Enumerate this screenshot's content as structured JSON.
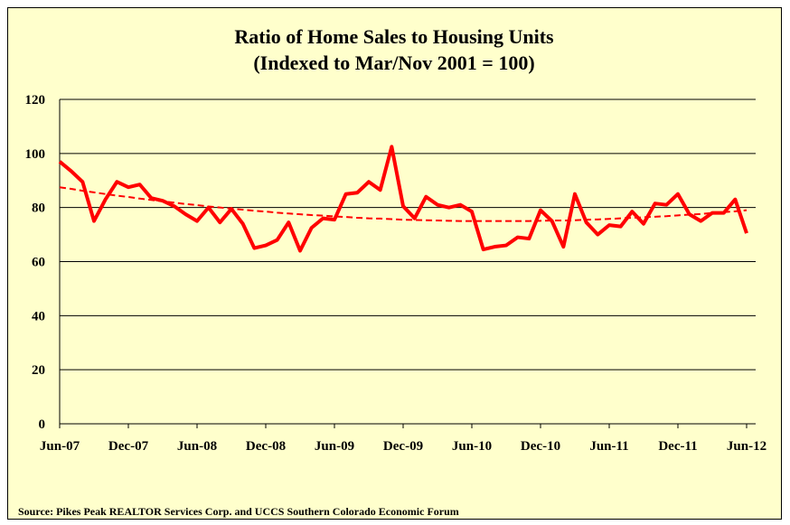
{
  "chart_data": {
    "type": "line",
    "title": "Ratio of Home Sales to Housing Units",
    "subtitle": "(Indexed to Mar/Nov 2001 = 100)",
    "source": "Source: Pikes Peak REALTOR Services Corp. and UCCS Southern Colorado Economic Forum",
    "categories": [
      "Jun-07",
      null,
      null,
      null,
      null,
      null,
      "Dec-07",
      null,
      null,
      null,
      null,
      null,
      "Jun-08",
      null,
      null,
      null,
      null,
      null,
      "Dec-08",
      null,
      null,
      null,
      null,
      null,
      "Jun-09",
      null,
      null,
      null,
      null,
      null,
      "Dec-09",
      null,
      null,
      null,
      null,
      null,
      "Jun-10",
      null,
      null,
      null,
      null,
      null,
      "Dec-10",
      null,
      null,
      null,
      null,
      null,
      "Jun-11",
      null,
      null,
      null,
      null,
      null,
      "Dec-11",
      null,
      null,
      null,
      null,
      null,
      "Jun-12"
    ],
    "series": [
      {
        "color": "#ff0000",
        "dash": false,
        "values": [
          97,
          93.5,
          89.5,
          75,
          83,
          89.5,
          87.5,
          88.5,
          83.5,
          82.5,
          80.5,
          77.5,
          75,
          80,
          74.5,
          79.5,
          74,
          65,
          66,
          68,
          74.5,
          64,
          72.5,
          76,
          75.5,
          85,
          85.5,
          89.5,
          86.5,
          102.5,
          80.5,
          76,
          84,
          81,
          80,
          81,
          78.5,
          64.5,
          65.5,
          66,
          69,
          68.5,
          79,
          75,
          65.5,
          85,
          74.5,
          70,
          73.5,
          73,
          78.5,
          74,
          81.5,
          81,
          85,
          77.5,
          75,
          78,
          78,
          83,
          70.5
        ]
      },
      {
        "color": "#ff0000",
        "dash": true,
        "values": [
          87.5,
          86.9,
          86.2,
          85.6,
          85.0,
          84.4,
          83.9,
          83.3,
          82.8,
          82.3,
          81.8,
          81.3,
          80.9,
          80.4,
          80.0,
          79.6,
          79.2,
          78.8,
          78.5,
          78.1,
          77.8,
          77.5,
          77.2,
          77.0,
          76.7,
          76.5,
          76.2,
          76.0,
          75.9,
          75.7,
          75.5,
          75.4,
          75.3,
          75.2,
          75.1,
          75.0,
          75.0,
          75.0,
          75.0,
          75.0,
          75.0,
          75.0,
          75.1,
          75.2,
          75.2,
          75.3,
          75.5,
          75.6,
          75.8,
          76.0,
          76.2,
          76.4,
          76.6,
          76.8,
          77.1,
          77.4,
          77.6,
          78.0,
          78.3,
          78.6,
          79.0
        ]
      }
    ],
    "ylim": [
      0,
      120
    ],
    "yticks": [
      0,
      20,
      40,
      60,
      80,
      100,
      120
    ],
    "grid": true
  }
}
